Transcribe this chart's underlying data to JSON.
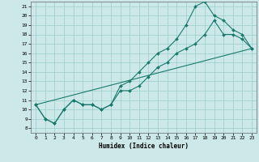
{
  "xlabel": "Humidex (Indice chaleur)",
  "bg_color": "#cce8e8",
  "grid_color": "#99cccc",
  "line_color": "#1a7a6e",
  "xlim": [
    -0.5,
    23.5
  ],
  "ylim": [
    7.5,
    21.5
  ],
  "xticks": [
    0,
    1,
    2,
    3,
    4,
    5,
    6,
    7,
    8,
    9,
    10,
    11,
    12,
    13,
    14,
    15,
    16,
    17,
    18,
    19,
    20,
    21,
    22,
    23
  ],
  "yticks": [
    8,
    9,
    10,
    11,
    12,
    13,
    14,
    15,
    16,
    17,
    18,
    19,
    20,
    21
  ],
  "line1_x": [
    0,
    1,
    2,
    3,
    4,
    5,
    6,
    7,
    8,
    9,
    10,
    11,
    12,
    13,
    14,
    15,
    16,
    17,
    18,
    19,
    20,
    21,
    22,
    23
  ],
  "line1_y": [
    10.5,
    9.0,
    8.5,
    10.0,
    11.0,
    10.5,
    10.5,
    10.0,
    10.5,
    12.0,
    12.0,
    12.5,
    13.5,
    14.5,
    15.0,
    16.0,
    16.5,
    17.0,
    18.0,
    19.5,
    18.0,
    18.0,
    17.5,
    16.5
  ],
  "line2_x": [
    0,
    1,
    2,
    3,
    4,
    5,
    6,
    7,
    8,
    9,
    10,
    11,
    12,
    13,
    14,
    15,
    16,
    17,
    18,
    19,
    20,
    21,
    22,
    23
  ],
  "line2_y": [
    10.5,
    9.0,
    8.5,
    10.0,
    11.0,
    10.5,
    10.5,
    10.0,
    10.5,
    12.5,
    13.0,
    14.0,
    15.0,
    16.0,
    16.5,
    17.5,
    19.0,
    21.0,
    21.5,
    20.0,
    19.5,
    18.5,
    18.0,
    16.5
  ],
  "line3_x": [
    0,
    23
  ],
  "line3_y": [
    10.5,
    16.5
  ]
}
